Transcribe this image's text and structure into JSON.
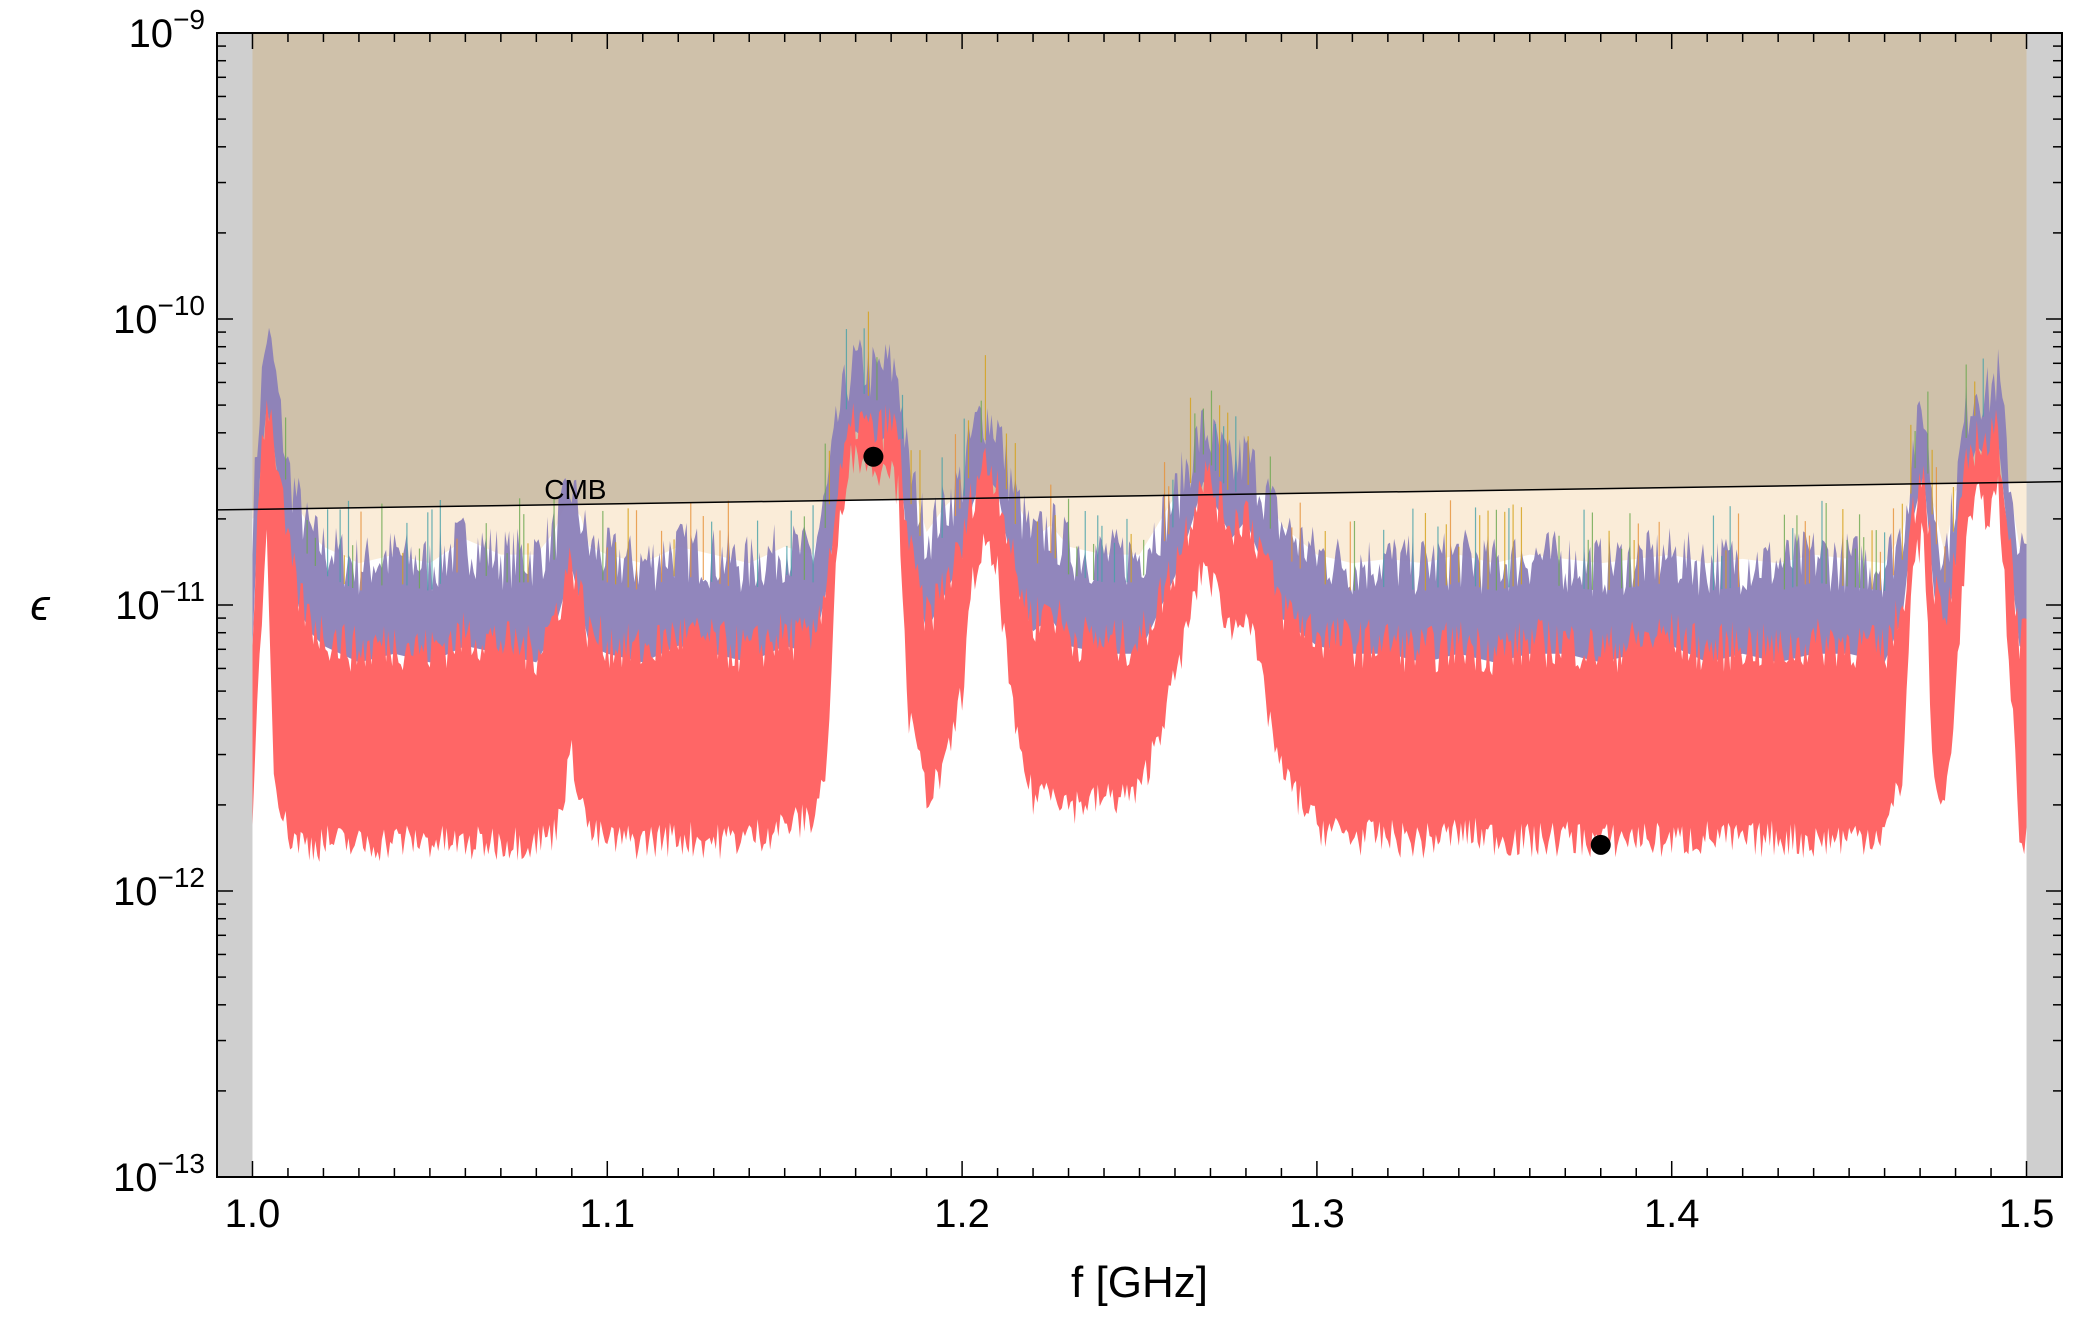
{
  "chart_data": {
    "type": "area",
    "xlabel": "f [GHz]",
    "ylabel": "ϵ",
    "xscale": "linear",
    "yscale": "log",
    "xlim": [
      0.99,
      1.51
    ],
    "ylim": [
      1e-13,
      1e-09
    ],
    "grid": false,
    "x_ticks": [
      {
        "value": 1.0,
        "label": "1.0"
      },
      {
        "value": 1.1,
        "label": "1.1"
      },
      {
        "value": 1.2,
        "label": "1.2"
      },
      {
        "value": 1.3,
        "label": "1.3"
      },
      {
        "value": 1.4,
        "label": "1.4"
      },
      {
        "value": 1.5,
        "label": "1.5"
      }
    ],
    "y_ticks": [
      {
        "value": 1e-13,
        "base": "10",
        "exp": "−13"
      },
      {
        "value": 1e-12,
        "base": "10",
        "exp": "−12"
      },
      {
        "value": 1e-11,
        "base": "10",
        "exp": "−11"
      },
      {
        "value": 1e-10,
        "base": "10",
        "exp": "−10"
      },
      {
        "value": 1e-09,
        "base": "10",
        "exp": "−9"
      }
    ],
    "regions": [
      {
        "id": "excluded-outside-band",
        "color": "#cfcfcf",
        "x_ranges": [
          [
            0.99,
            1.0
          ],
          [
            1.5,
            1.51
          ]
        ]
      },
      {
        "id": "cmb-excluded",
        "color": "#cfc1aa",
        "x_range": [
          1.0,
          1.5
        ],
        "y_from_line": "cmb",
        "y_to": 1e-09
      },
      {
        "id": "sensitivity-band",
        "color": "#faecd8",
        "x_range": [
          1.0,
          1.5
        ],
        "y_from_series": "upper_envelope",
        "y_to_line": "cmb"
      }
    ],
    "lines": [
      {
        "id": "cmb",
        "label": "CMB",
        "color": "#000000",
        "points": [
          [
            0.99,
            2.15e-11
          ],
          [
            1.51,
            2.7e-11
          ]
        ]
      }
    ],
    "series": [
      {
        "id": "upper_envelope",
        "color": "#8b80b8",
        "accent_colors": [
          "#6aa84f",
          "#e69138",
          "#45a0a8",
          "#d4a017"
        ],
        "x": [
          1.0,
          1.002,
          1.004,
          1.006,
          1.008,
          1.01,
          1.013,
          1.016,
          1.02,
          1.03,
          1.04,
          1.05,
          1.06,
          1.07,
          1.08,
          1.085,
          1.09,
          1.095,
          1.1,
          1.11,
          1.12,
          1.13,
          1.14,
          1.15,
          1.158,
          1.162,
          1.165,
          1.168,
          1.17,
          1.173,
          1.176,
          1.179,
          1.182,
          1.185,
          1.19,
          1.195,
          1.2,
          1.203,
          1.206,
          1.21,
          1.215,
          1.22,
          1.225,
          1.23,
          1.24,
          1.25,
          1.26,
          1.265,
          1.268,
          1.272,
          1.276,
          1.28,
          1.285,
          1.29,
          1.3,
          1.31,
          1.32,
          1.33,
          1.34,
          1.35,
          1.36,
          1.37,
          1.38,
          1.39,
          1.4,
          1.41,
          1.42,
          1.43,
          1.44,
          1.45,
          1.46,
          1.465,
          1.468,
          1.471,
          1.474,
          1.477,
          1.48,
          1.483,
          1.486,
          1.489,
          1.492,
          1.495,
          1.498,
          1.5
        ],
        "y": [
          2e-11,
          5e-11,
          9e-11,
          7e-11,
          4.5e-11,
          3e-11,
          2.3e-11,
          1.8e-11,
          1.6e-11,
          1.4e-11,
          1.5e-11,
          1.4e-11,
          1.7e-11,
          1.5e-11,
          1.5e-11,
          1.8e-11,
          2.6e-11,
          1.6e-11,
          1.5e-11,
          1.4e-11,
          1.6e-11,
          1.5e-11,
          1.4e-11,
          1.6e-11,
          1.5e-11,
          2.5e-11,
          4.5e-11,
          6.5e-11,
          7e-11,
          6.8e-11,
          6.5e-11,
          7e-11,
          6.5e-11,
          3e-11,
          1.8e-11,
          2.2e-11,
          2.8e-11,
          4e-11,
          4.8e-11,
          4.2e-11,
          2.4e-11,
          1.7e-11,
          1.9e-11,
          1.6e-11,
          1.5e-11,
          1.5e-11,
          2.4e-11,
          3.5e-11,
          4.2e-11,
          3.6e-11,
          3e-11,
          3.4e-11,
          2.6e-11,
          1.9e-11,
          1.5e-11,
          1.4e-11,
          1.45e-11,
          1.4e-11,
          1.5e-11,
          1.4e-11,
          1.5e-11,
          1.45e-11,
          1.4e-11,
          1.45e-11,
          1.5e-11,
          1.4e-11,
          1.45e-11,
          1.4e-11,
          1.5e-11,
          1.45e-11,
          1.4e-11,
          1.8e-11,
          3.5e-11,
          5e-11,
          2.2e-11,
          1.5e-11,
          2.5e-11,
          4.8e-11,
          6e-11,
          5.5e-11,
          6.5e-11,
          3e-11,
          1.6e-11,
          1.5e-11
        ]
      },
      {
        "id": "lower_band",
        "color": "#ff6666",
        "x": [
          1.0,
          1.002,
          1.004,
          1.006,
          1.008,
          1.01,
          1.013,
          1.016,
          1.02,
          1.03,
          1.04,
          1.05,
          1.06,
          1.07,
          1.08,
          1.085,
          1.09,
          1.095,
          1.1,
          1.11,
          1.12,
          1.13,
          1.14,
          1.15,
          1.158,
          1.162,
          1.165,
          1.168,
          1.17,
          1.173,
          1.176,
          1.179,
          1.182,
          1.185,
          1.19,
          1.195,
          1.2,
          1.203,
          1.206,
          1.21,
          1.215,
          1.22,
          1.225,
          1.23,
          1.24,
          1.25,
          1.26,
          1.265,
          1.268,
          1.272,
          1.276,
          1.28,
          1.285,
          1.29,
          1.3,
          1.31,
          1.32,
          1.33,
          1.34,
          1.35,
          1.36,
          1.37,
          1.38,
          1.39,
          1.4,
          1.41,
          1.42,
          1.43,
          1.44,
          1.45,
          1.46,
          1.465,
          1.468,
          1.471,
          1.474,
          1.477,
          1.48,
          1.483,
          1.486,
          1.489,
          1.492,
          1.495,
          1.498,
          1.5
        ],
        "y_upper": [
          8e-12,
          3e-11,
          5.5e-11,
          4e-11,
          2.5e-11,
          1.6e-11,
          1.1e-11,
          9e-12,
          8e-12,
          7e-12,
          7.5e-12,
          7e-12,
          8e-12,
          7.5e-12,
          7e-12,
          9e-12,
          1.5e-11,
          8e-12,
          7.5e-12,
          7e-12,
          8e-12,
          7.5e-12,
          7e-12,
          8e-12,
          7.5e-12,
          1.3e-11,
          2.5e-11,
          3.8e-11,
          4.5e-11,
          4.2e-11,
          4e-11,
          4.4e-11,
          4e-11,
          1.6e-11,
          9e-12,
          1.2e-11,
          1.6e-11,
          2.5e-11,
          3.2e-11,
          2.8e-11,
          1.3e-11,
          9e-12,
          1e-11,
          8e-12,
          7.5e-12,
          7.5e-12,
          1.4e-11,
          2.2e-11,
          3e-11,
          2.4e-11,
          1.9e-11,
          2.2e-11,
          1.5e-11,
          1e-11,
          8e-12,
          7.5e-12,
          7.5e-12,
          7e-12,
          7.5e-12,
          7e-12,
          7.5e-12,
          7.5e-12,
          7e-12,
          7.5e-12,
          8e-12,
          7e-12,
          7.5e-12,
          7e-12,
          7.5e-12,
          7.5e-12,
          7e-12,
          1e-11,
          2.2e-11,
          3.2e-11,
          1.2e-11,
          8e-12,
          1.5e-11,
          3e-11,
          4e-11,
          3.6e-11,
          4.2e-11,
          1.8e-11,
          8e-12,
          7.5e-12
        ],
        "y_lower": [
          1.6e-12,
          7e-12,
          1.8e-11,
          3e-12,
          1.9e-12,
          1.6e-12,
          1.5e-12,
          1.45e-12,
          1.5e-12,
          1.45e-12,
          1.5e-12,
          1.5e-12,
          1.45e-12,
          1.5e-12,
          1.5e-12,
          1.6e-12,
          3e-12,
          1.6e-12,
          1.5e-12,
          1.5e-12,
          1.55e-12,
          1.5e-12,
          1.55e-12,
          1.7e-12,
          1.8e-12,
          2.8e-12,
          1.8e-11,
          3.2e-11,
          3.4e-11,
          3.2e-11,
          3e-11,
          3.3e-11,
          2.5e-11,
          4e-12,
          2.2e-12,
          2.6e-12,
          5e-12,
          1.2e-11,
          1.6e-11,
          1.3e-11,
          3.5e-12,
          2.1e-12,
          2.4e-12,
          2e-12,
          2.1e-12,
          2.2e-12,
          5.5e-12,
          1e-11,
          1.4e-11,
          1.1e-11,
          8e-12,
          1e-11,
          5e-12,
          2.6e-12,
          1.7e-12,
          1.55e-12,
          1.55e-12,
          1.5e-12,
          1.6e-12,
          1.55e-12,
          1.5e-12,
          1.55e-12,
          1.5e-12,
          1.55e-12,
          1.5e-12,
          1.55e-12,
          1.5e-12,
          1.55e-12,
          1.5e-12,
          1.55e-12,
          1.6e-12,
          2.5e-12,
          1.4e-11,
          1.8e-11,
          2.2e-12,
          2e-12,
          5e-12,
          1.7e-11,
          2.4e-11,
          2e-11,
          2.6e-11,
          7e-12,
          1.5e-12,
          1.5e-12
        ]
      }
    ],
    "points": [
      {
        "x": 1.175,
        "y": 3.3e-11,
        "color": "#000000"
      },
      {
        "x": 1.38,
        "y": 1.45e-12,
        "color": "#000000"
      }
    ],
    "annotations": [
      {
        "text": "CMB",
        "x": 1.091,
        "y": 2.35e-11
      }
    ]
  }
}
